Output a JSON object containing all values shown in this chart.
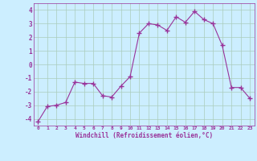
{
  "x": [
    0,
    1,
    2,
    3,
    4,
    5,
    6,
    7,
    8,
    9,
    10,
    11,
    12,
    13,
    14,
    15,
    16,
    17,
    18,
    19,
    20,
    21,
    22,
    23
  ],
  "y": [
    -4.2,
    -3.1,
    -3.0,
    -2.8,
    -1.3,
    -1.4,
    -1.4,
    -2.3,
    -2.4,
    -1.6,
    -0.9,
    2.3,
    3.0,
    2.9,
    2.5,
    3.5,
    3.1,
    3.9,
    3.3,
    3.0,
    1.4,
    -1.7,
    -1.7,
    -2.5
  ],
  "line_color": "#993399",
  "marker": "+",
  "marker_size": 4,
  "bg_color": "#cceeff",
  "grid_color": "#aaccbb",
  "xlabel": "Windchill (Refroidissement éolien,°C)",
  "xlabel_color": "#993399",
  "tick_color": "#993399",
  "ylim": [
    -4.5,
    4.5
  ],
  "xlim": [
    -0.5,
    23.5
  ],
  "yticks": [
    -4,
    -3,
    -2,
    -1,
    0,
    1,
    2,
    3,
    4
  ],
  "xticks": [
    0,
    1,
    2,
    3,
    4,
    5,
    6,
    7,
    8,
    9,
    10,
    11,
    12,
    13,
    14,
    15,
    16,
    17,
    18,
    19,
    20,
    21,
    22,
    23
  ],
  "xtick_labels": [
    "0",
    "1",
    "2",
    "3",
    "4",
    "5",
    "6",
    "7",
    "8",
    "9",
    "10",
    "11",
    "12",
    "13",
    "14",
    "15",
    "16",
    "17",
    "18",
    "19",
    "20",
    "21",
    "22",
    "23"
  ]
}
